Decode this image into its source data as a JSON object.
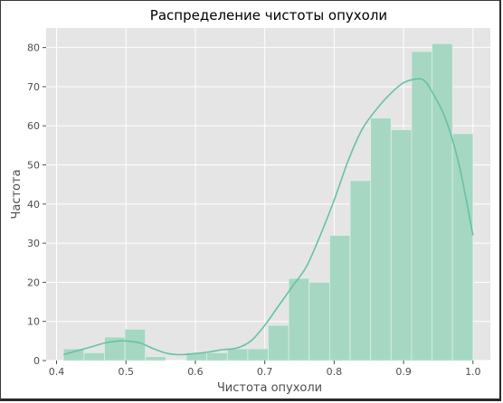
{
  "chart_data": {
    "type": "bar",
    "title": "Распределение чистоты опухоли",
    "xlabel": "Чистота опухоли",
    "ylabel": "Частота",
    "xlim": [
      0.385,
      1.025
    ],
    "ylim": [
      0,
      85
    ],
    "xticks": [
      0.4,
      0.5,
      0.6,
      0.7,
      0.8,
      0.9,
      1.0
    ],
    "xtick_labels": [
      "0.4",
      "0.5",
      "0.6",
      "0.7",
      "0.8",
      "0.9",
      "1.0"
    ],
    "yticks": [
      0,
      10,
      20,
      30,
      40,
      50,
      60,
      70,
      80
    ],
    "ytick_labels": [
      "0",
      "10",
      "20",
      "30",
      "40",
      "50",
      "60",
      "70",
      "80"
    ],
    "grid": true,
    "bins": [
      {
        "x0": 0.41,
        "x1": 0.4395,
        "count": 3
      },
      {
        "x0": 0.4395,
        "x1": 0.469,
        "count": 2
      },
      {
        "x0": 0.469,
        "x1": 0.4985,
        "count": 6
      },
      {
        "x0": 0.4985,
        "x1": 0.528,
        "count": 8
      },
      {
        "x0": 0.528,
        "x1": 0.5575,
        "count": 1
      },
      {
        "x0": 0.5575,
        "x1": 0.587,
        "count": 0
      },
      {
        "x0": 0.587,
        "x1": 0.6165,
        "count": 2
      },
      {
        "x0": 0.6165,
        "x1": 0.646,
        "count": 2
      },
      {
        "x0": 0.646,
        "x1": 0.6755,
        "count": 3
      },
      {
        "x0": 0.6755,
        "x1": 0.705,
        "count": 3
      },
      {
        "x0": 0.705,
        "x1": 0.7345,
        "count": 9
      },
      {
        "x0": 0.7345,
        "x1": 0.764,
        "count": 21
      },
      {
        "x0": 0.764,
        "x1": 0.7935,
        "count": 20
      },
      {
        "x0": 0.7935,
        "x1": 0.823,
        "count": 32
      },
      {
        "x0": 0.823,
        "x1": 0.8525,
        "count": 46
      },
      {
        "x0": 0.8525,
        "x1": 0.882,
        "count": 62
      },
      {
        "x0": 0.882,
        "x1": 0.9115,
        "count": 59
      },
      {
        "x0": 0.9115,
        "x1": 0.941,
        "count": 79
      },
      {
        "x0": 0.941,
        "x1": 0.9705,
        "count": 81
      },
      {
        "x0": 0.9705,
        "x1": 1.0,
        "count": 58
      }
    ],
    "kde": {
      "x": [
        0.41,
        0.43,
        0.45,
        0.47,
        0.49,
        0.5,
        0.52,
        0.54,
        0.56,
        0.58,
        0.6,
        0.62,
        0.64,
        0.66,
        0.68,
        0.7,
        0.72,
        0.74,
        0.76,
        0.78,
        0.8,
        0.82,
        0.84,
        0.86,
        0.88,
        0.9,
        0.92,
        0.93,
        0.94,
        0.96,
        0.98,
        1.0
      ],
      "y": [
        1.5,
        2.5,
        3.5,
        4.5,
        5.0,
        5.0,
        4.5,
        3.0,
        1.8,
        1.5,
        1.8,
        2.2,
        2.8,
        3.2,
        5.0,
        9.0,
        14.0,
        19.0,
        24.0,
        32.0,
        41.0,
        51.0,
        59.0,
        64.0,
        68.0,
        71.0,
        72.0,
        71.5,
        69.0,
        62.0,
        50.0,
        32.0
      ]
    },
    "colors": {
      "bar_fill": "#a6d7c3",
      "bar_stroke": "#dceee6",
      "kde_line": "#66c2a5",
      "plot_background": "#e5e5e5",
      "grid": "#ffffff"
    }
  }
}
